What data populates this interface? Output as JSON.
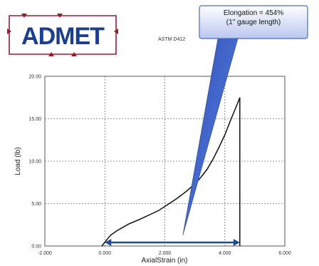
{
  "logo": {
    "text": "ADMET"
  },
  "standard_label": "ASTM D412",
  "callout": {
    "line1": "Elongation = 454%",
    "line2": "(1\" gauge length)"
  },
  "colors": {
    "curve": "#111111",
    "arrow": "#1f4e8c",
    "callout_fill": "#3e63c9",
    "logo_red": "#9b1b2a",
    "logo_blue": "#1b3f8f"
  },
  "chart_data": {
    "type": "line",
    "xlabel": "AxialStrain (in)",
    "ylabel": "Load (lb)",
    "xlim": [
      -2.0,
      6.0
    ],
    "ylim": [
      0.0,
      20.0
    ],
    "x_ticks": [
      "-2.000",
      "0.000",
      "2.000",
      "4.000",
      "6.000"
    ],
    "x_tick_values": [
      -2.0,
      0.0,
      2.0,
      4.0,
      6.0
    ],
    "y_ticks": [
      "0.00",
      "5.00",
      "10.00",
      "15.00",
      "20.00"
    ],
    "y_tick_values": [
      0.0,
      5.0,
      10.0,
      15.0,
      20.0
    ],
    "grid": true,
    "series": [
      {
        "x": [
          -0.1,
          0.0,
          0.1,
          0.2,
          0.4,
          0.6,
          0.8,
          1.0,
          1.2,
          1.5,
          1.8,
          2.1,
          2.4,
          2.7,
          3.0,
          3.2,
          3.4,
          3.6,
          3.8,
          4.0,
          4.2,
          4.4,
          4.5,
          4.5
        ],
        "y": [
          0.0,
          0.45,
          0.9,
          1.3,
          1.8,
          2.2,
          2.6,
          2.9,
          3.2,
          3.7,
          4.2,
          4.9,
          5.6,
          6.4,
          7.3,
          8.1,
          9.0,
          10.2,
          11.6,
          13.1,
          14.9,
          16.6,
          17.5,
          0.0
        ]
      }
    ],
    "annotation_range": {
      "x_start": 0.0,
      "x_end": 4.5
    }
  }
}
